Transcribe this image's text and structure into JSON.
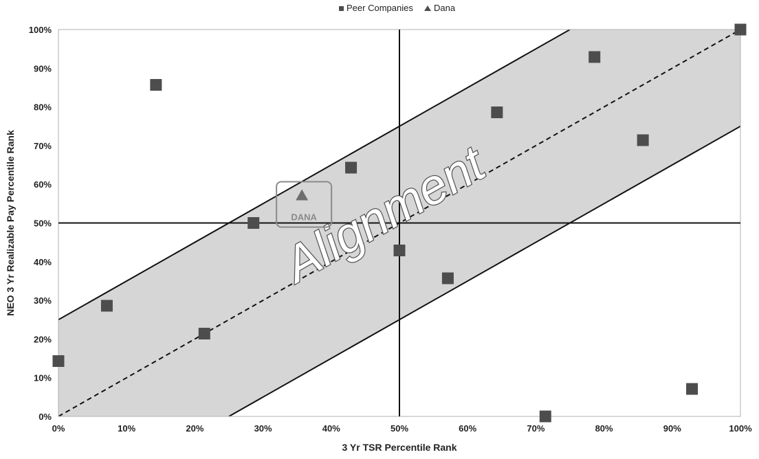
{
  "chart_data": {
    "type": "scatter",
    "xlabel": "3 Yr TSR Percentile Rank",
    "ylabel": "NEO 3 Yr Realizable Pay Percentile Rank",
    "xlim": [
      0,
      100
    ],
    "ylim": [
      0,
      100
    ],
    "x_ticks": [
      "0%",
      "10%",
      "20%",
      "30%",
      "40%",
      "50%",
      "60%",
      "70%",
      "80%",
      "90%",
      "100%"
    ],
    "y_ticks": [
      "0%",
      "10%",
      "20%",
      "30%",
      "40%",
      "50%",
      "60%",
      "70%",
      "80%",
      "90%",
      "100%"
    ],
    "grid": false,
    "legend_position": "top-center",
    "series": [
      {
        "name": "Peer Companies",
        "marker": "square",
        "color": "#4d4d4d",
        "points": [
          {
            "x": 0,
            "y": 14.3
          },
          {
            "x": 7.1,
            "y": 28.6
          },
          {
            "x": 14.3,
            "y": 85.7
          },
          {
            "x": 21.4,
            "y": 21.4
          },
          {
            "x": 28.6,
            "y": 50
          },
          {
            "x": 42.9,
            "y": 64.3
          },
          {
            "x": 50,
            "y": 42.9
          },
          {
            "x": 57.1,
            "y": 35.7
          },
          {
            "x": 64.3,
            "y": 78.6
          },
          {
            "x": 71.4,
            "y": 0
          },
          {
            "x": 78.6,
            "y": 92.9
          },
          {
            "x": 85.7,
            "y": 71.4
          },
          {
            "x": 92.9,
            "y": 7.1
          },
          {
            "x": 100,
            "y": 100
          }
        ]
      },
      {
        "name": "Dana",
        "marker": "triangle",
        "color": "#6e6e6e",
        "points": [
          {
            "x": 35.7,
            "y": 57.1
          }
        ]
      }
    ],
    "reference_lines": {
      "vertical_x": 50,
      "horizontal_y": 50,
      "diagonal_offset": 25
    },
    "annotations": {
      "band_label": "Alignment",
      "point_label": "DANA"
    },
    "colors": {
      "band_fill": "#d6d6d6",
      "lines": "#111111",
      "label_box": "#8a8a8a"
    }
  }
}
